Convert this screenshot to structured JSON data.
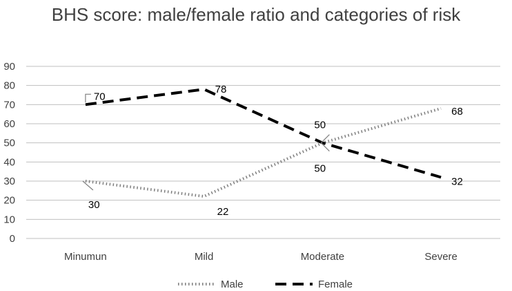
{
  "chart_data": {
    "type": "line",
    "title": "BHS score: male/female ratio and categories of risk",
    "xlabel": "",
    "ylabel": "",
    "categories": [
      "Minumun",
      "Mild",
      "Moderate",
      "Severe"
    ],
    "ylim": [
      0,
      90
    ],
    "yticks": [
      0,
      10,
      20,
      30,
      40,
      50,
      60,
      70,
      80,
      90
    ],
    "grid": true,
    "legend_position": "bottom",
    "series": [
      {
        "name": "Male",
        "values": [
          30,
          22,
          50,
          68
        ],
        "line_style": "dotted",
        "color": "#7f7f7f"
      },
      {
        "name": "Female",
        "values": [
          70,
          78,
          50,
          32
        ],
        "line_style": "dashed",
        "color": "#000000"
      }
    ]
  }
}
